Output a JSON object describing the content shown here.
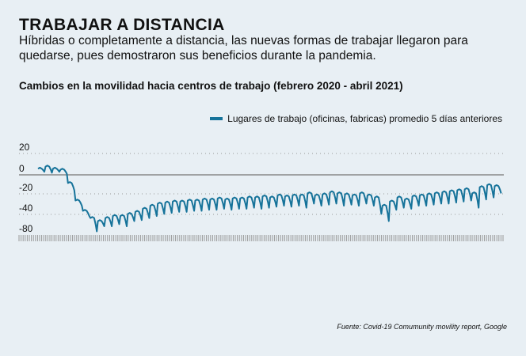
{
  "title": "TRABAJAR A DISTANCIA",
  "subtitle": "Híbridas o completamente a distancia, las nuevas formas de trabajar llegaron para quedarse, pues demostraron sus beneficios durante la pandemia.",
  "source": "Fuente: Covid-19 Comumunity movility report, Google",
  "colors": {
    "line": "#16739a",
    "background": "#e8eff4"
  },
  "chart_data": {
    "type": "line",
    "title": "Cambios en la movilidad hacia centros de trabajo (febrero 2020 - abril 2021)",
    "y_tick_labels": [
      "20",
      "0",
      "-20",
      "-40",
      "-80"
    ],
    "ylim": [
      -60,
      20
    ],
    "x_range": [
      "febrero 2020",
      "abril 2021"
    ],
    "legend_position": "top-right",
    "grid": true,
    "series": [
      {
        "name": "Lugares de trabajo (oficinas, fabricas) promedio 5 días anteriores",
        "weekly_highs": [
          6,
          8,
          6,
          5,
          -8,
          -25,
          -35,
          -42,
          -45,
          -42,
          -40,
          -40,
          -38,
          -36,
          -33,
          -30,
          -28,
          -27,
          -26,
          -26,
          -25,
          -25,
          -24,
          -24,
          -23,
          -24,
          -23,
          -23,
          -22,
          -22,
          -21,
          -22,
          -20,
          -21,
          -20,
          -20,
          -18,
          -20,
          -19,
          -17,
          -18,
          -19,
          -20,
          -18,
          -20,
          -22,
          -30,
          -26,
          -22,
          -24,
          -21,
          -20,
          -19,
          -18,
          -17,
          -16,
          -15,
          -14,
          -18,
          -12,
          -10,
          -11
        ],
        "weekly_lows": [
          3,
          2,
          3,
          1,
          -15,
          -30,
          -40,
          -55,
          -50,
          -50,
          -48,
          -50,
          -45,
          -44,
          -42,
          -40,
          -38,
          -37,
          -36,
          -36,
          -35,
          -35,
          -34,
          -34,
          -33,
          -34,
          -33,
          -33,
          -32,
          -33,
          -32,
          -31,
          -30,
          -31,
          -30,
          -32,
          -28,
          -30,
          -29,
          -28,
          -30,
          -29,
          -30,
          -28,
          -30,
          -38,
          -45,
          -34,
          -32,
          -33,
          -30,
          -30,
          -29,
          -28,
          -28,
          -27,
          -26,
          -25,
          -32,
          -24,
          -22,
          -18
        ]
      }
    ]
  }
}
